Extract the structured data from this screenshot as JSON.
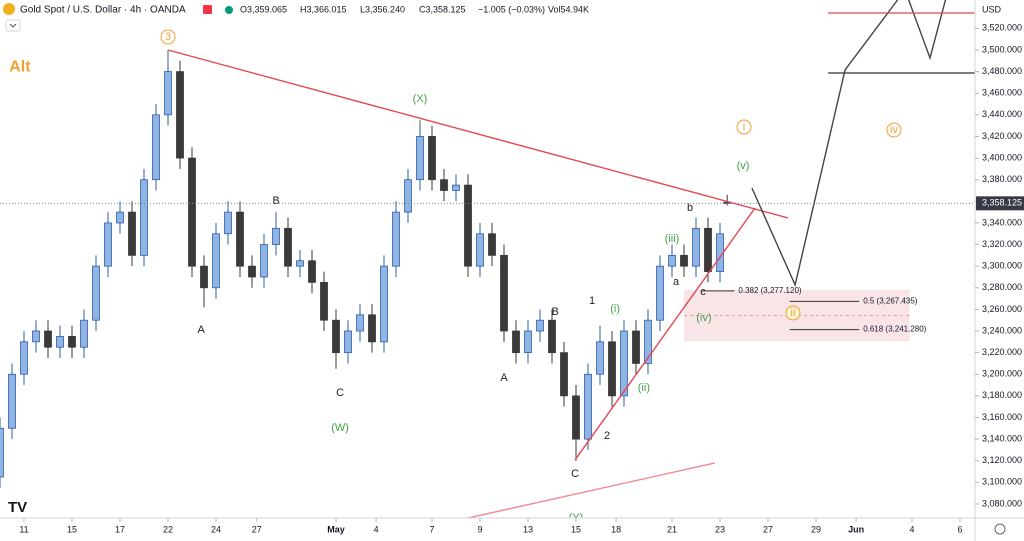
{
  "header": {
    "symbol": "Gold Spot / U.S. Dollar · 4h · OANDA",
    "open": "O3,359.065",
    "high": "H3,366.015",
    "low": "L3,356.240",
    "close": "C3,358.125",
    "change": "−1.005 (−0.03%)",
    "volume": "Vol54.94K"
  },
  "chart_data": {
    "type": "candlestick",
    "currency": "USD",
    "up_color": "#8fb3e3",
    "up_border": "#2f5ea8",
    "down_color": "#3a3a3a",
    "x": [
      -1,
      -0.5,
      0,
      0.5,
      1,
      1.5,
      2,
      2.5,
      3,
      3.5,
      4,
      4.5,
      5,
      5.5,
      6,
      6.5,
      7,
      7.5,
      8,
      8.5,
      9,
      9.5,
      10,
      10.5,
      11,
      11.5,
      12,
      12.5,
      13,
      13.5,
      14,
      14.5,
      15,
      15.5,
      16,
      16.5,
      17,
      17.5,
      18,
      18.5,
      19,
      19.5,
      20,
      20.5,
      21,
      21.5,
      22,
      22.5,
      23,
      23.5,
      24,
      24.5,
      25,
      25.5,
      26,
      26.5,
      27,
      27.5,
      28,
      28.5,
      29,
      29.3
    ],
    "open": [
      3105,
      3150,
      3200,
      3230,
      3240,
      3225,
      3235,
      3225,
      3250,
      3300,
      3340,
      3350,
      3310,
      3380,
      3440,
      3480,
      3400,
      3300,
      3280,
      3330,
      3350,
      3300,
      3290,
      3320,
      3335,
      3300,
      3305,
      3285,
      3250,
      3220,
      3240,
      3255,
      3230,
      3300,
      3350,
      3380,
      3420,
      3380,
      3370,
      3375,
      3300,
      3330,
      3310,
      3240,
      3220,
      3240,
      3250,
      3220,
      3180,
      3140,
      3200,
      3230,
      3180,
      3240,
      3210,
      3250,
      3300,
      3310,
      3300,
      3335,
      3295,
      3359.065
    ],
    "high": [
      3160,
      3210,
      3240,
      3250,
      3250,
      3245,
      3245,
      3260,
      3310,
      3350,
      3360,
      3360,
      3390,
      3450,
      3500,
      3490,
      3410,
      3310,
      3340,
      3360,
      3360,
      3310,
      3330,
      3350,
      3345,
      3315,
      3315,
      3295,
      3260,
      3250,
      3265,
      3265,
      3310,
      3360,
      3390,
      3435,
      3430,
      3390,
      3385,
      3385,
      3340,
      3340,
      3320,
      3250,
      3250,
      3260,
      3260,
      3230,
      3190,
      3210,
      3245,
      3240,
      3250,
      3250,
      3260,
      3310,
      3320,
      3320,
      3345,
      3345,
      3340,
      3366.015
    ],
    "low": [
      3095,
      3140,
      3190,
      3220,
      3215,
      3215,
      3215,
      3215,
      3240,
      3290,
      3330,
      3300,
      3300,
      3370,
      3430,
      3390,
      3290,
      3262,
      3270,
      3320,
      3290,
      3280,
      3280,
      3310,
      3290,
      3290,
      3275,
      3240,
      3205,
      3210,
      3230,
      3220,
      3220,
      3290,
      3340,
      3370,
      3370,
      3360,
      3360,
      3290,
      3290,
      3300,
      3230,
      3210,
      3210,
      3230,
      3210,
      3170,
      3120,
      3130,
      3190,
      3170,
      3170,
      3200,
      3200,
      3240,
      3290,
      3290,
      3290,
      3285,
      3285,
      3356.24
    ],
    "close": [
      3150,
      3200,
      3230,
      3240,
      3225,
      3235,
      3225,
      3250,
      3300,
      3340,
      3350,
      3310,
      3380,
      3440,
      3480,
      3400,
      3300,
      3280,
      3330,
      3350,
      3300,
      3290,
      3320,
      3335,
      3300,
      3305,
      3285,
      3250,
      3220,
      3240,
      3255,
      3230,
      3300,
      3350,
      3380,
      3420,
      3380,
      3370,
      3375,
      3300,
      3330,
      3310,
      3240,
      3220,
      3240,
      3250,
      3220,
      3180,
      3140,
      3200,
      3230,
      3180,
      3240,
      3210,
      3250,
      3300,
      3310,
      3300,
      3335,
      3295,
      3330,
      3358.125
    ],
    "xlim": [
      -1,
      39.625
    ],
    "ylim": [
      3067,
      3544.4
    ],
    "grid": false,
    "yticks": [
      {
        "value": 3080,
        "label": "3,080.000"
      },
      {
        "value": 3100,
        "label": "3,100.000"
      },
      {
        "value": 3120,
        "label": "3,120.000"
      },
      {
        "value": 3140,
        "label": "3,140.000"
      },
      {
        "value": 3160,
        "label": "3,160.000"
      },
      {
        "value": 3180,
        "label": "3,180.000"
      },
      {
        "value": 3200,
        "label": "3,200.000"
      },
      {
        "value": 3220,
        "label": "3,220.000"
      },
      {
        "value": 3240,
        "label": "3,240.000"
      },
      {
        "value": 3260,
        "label": "3,260.000"
      },
      {
        "value": 3280,
        "label": "3,280.000"
      },
      {
        "value": 3300,
        "label": "3,300.000"
      },
      {
        "value": 3320,
        "label": "3,320.000"
      },
      {
        "value": 3340,
        "label": "3,340.000"
      },
      {
        "value": 3360,
        "label": "3,360.000"
      },
      {
        "value": 3380,
        "label": "3,380.000"
      },
      {
        "value": 3400,
        "label": "3,400.000"
      },
      {
        "value": 3420,
        "label": "3,420.000"
      },
      {
        "value": 3440,
        "label": "3,440.000"
      },
      {
        "value": 3460,
        "label": "3,460.000"
      },
      {
        "value": 3480,
        "label": "3,480.000"
      },
      {
        "value": 3500,
        "label": "3,500.000"
      },
      {
        "value": 3520,
        "label": "3,520.000"
      }
    ],
    "xticks": [
      {
        "value": 0,
        "label": "11"
      },
      {
        "value": 2,
        "label": "15"
      },
      {
        "value": 4,
        "label": "17"
      },
      {
        "value": 6,
        "label": "22"
      },
      {
        "value": 8,
        "label": "24"
      },
      {
        "value": 9.7,
        "label": "27"
      },
      {
        "value": 13,
        "label": "May"
      },
      {
        "value": 14.67,
        "label": "4"
      },
      {
        "value": 17,
        "label": "7"
      },
      {
        "value": 19,
        "label": "9"
      },
      {
        "value": 21,
        "label": "13"
      },
      {
        "value": 23,
        "label": "15"
      },
      {
        "value": 24.67,
        "label": "18"
      },
      {
        "value": 27,
        "label": "21"
      },
      {
        "value": 29,
        "label": "23"
      },
      {
        "value": 31,
        "label": "27"
      },
      {
        "value": 33,
        "label": "29"
      },
      {
        "value": 34.67,
        "label": "Jun"
      },
      {
        "value": 37,
        "label": "4"
      },
      {
        "value": 39,
        "label": "6"
      }
    ],
    "last_price": {
      "value": 3358.125,
      "label": "3,358.125"
    },
    "fib_zone": {
      "color": "#f8dde2",
      "top": 3278,
      "bottom": 3230.8,
      "x": [
        27.5,
        36.9
      ]
    },
    "fib_levels": [
      {
        "value": 3277.12,
        "label": "0.382 (3,277.120)",
        "x": [
          28.2,
          29.6
        ]
      },
      {
        "value": 3267.435,
        "label": "0.5 (3,267.435)",
        "x": [
          31.9,
          34.8
        ]
      },
      {
        "value": 3241.28,
        "label": "0.618 (3,241.280)",
        "x": [
          31.9,
          34.8
        ]
      }
    ],
    "trendlines": [
      {
        "color": "#e5474f",
        "x": [
          6,
          31.83
        ],
        "y": [
          3500,
          3344.6
        ]
      },
      {
        "color": "#e5474f",
        "x": [
          22.96,
          30.46
        ],
        "y": [
          3120.7,
          3353.8
        ]
      },
      {
        "color": "#f08a90",
        "x": [
          17.96,
          28.79
        ],
        "y": [
          3064.3,
          3117.9
        ]
      },
      {
        "color": "#444444",
        "x": [
          30.33,
          32.13,
          34.21,
          36.71
        ],
        "y": [
          3372.3,
          3282.6,
          3481.5,
          3555.5
        ]
      },
      {
        "color": "#444444",
        "x": [
          36.71,
          37.75,
          38.5
        ],
        "y": [
          3555.5,
          3492.6,
          3555
        ]
      }
    ],
    "hlines": [
      {
        "color": "#e5474f",
        "value": 3534.2,
        "x": [
          33.5,
          39.625
        ]
      },
      {
        "color": "#333333",
        "value": 3478.7,
        "x": [
          33.5,
          39.625
        ]
      }
    ],
    "annotations": [
      {
        "text": "3",
        "x": 6,
        "y": 3512,
        "color": "#f0a030",
        "circle": true
      },
      {
        "text": "Alt",
        "x": -0.17,
        "y": 3484,
        "color": "#f0a030",
        "bold": true
      },
      {
        "text": "(X)",
        "x": 16.5,
        "y": 3454.7,
        "color": "#43a047"
      },
      {
        "text": "A",
        "x": 7.38,
        "y": 3241,
        "color": "#222222"
      },
      {
        "text": "B",
        "x": 10.5,
        "y": 3360.3,
        "color": "#222222"
      },
      {
        "text": "C",
        "x": 13.17,
        "y": 3182.7,
        "color": "#222222"
      },
      {
        "text": "(W)",
        "x": 13.17,
        "y": 3150.3,
        "color": "#43a047"
      },
      {
        "text": "A",
        "x": 20,
        "y": 3196.6,
        "color": "#222222"
      },
      {
        "text": "B",
        "x": 22.13,
        "y": 3257.6,
        "color": "#222222"
      },
      {
        "text": "C",
        "x": 22.96,
        "y": 3107.8,
        "color": "#222222"
      },
      {
        "text": "(Y)",
        "x": 23,
        "y": 3067,
        "color": "#43a047"
      },
      {
        "text": "1",
        "x": 23.67,
        "y": 3267.8,
        "color": "#222222"
      },
      {
        "text": "2",
        "x": 24.29,
        "y": 3143,
        "color": "#222222"
      },
      {
        "text": "(i)",
        "x": 24.63,
        "y": 3260.4,
        "color": "#43a047"
      },
      {
        "text": "(ii)",
        "x": 25.83,
        "y": 3187.3,
        "color": "#43a047"
      },
      {
        "text": "(iii)",
        "x": 27,
        "y": 3325.2,
        "color": "#43a047"
      },
      {
        "text": "(iv)",
        "x": 28.33,
        "y": 3252.1,
        "color": "#43a047"
      },
      {
        "text": "(v)",
        "x": 29.96,
        "y": 3392.7,
        "color": "#43a047"
      },
      {
        "text": "a",
        "x": 27.17,
        "y": 3285.4,
        "color": "#222222"
      },
      {
        "text": "b",
        "x": 27.75,
        "y": 3353.8,
        "color": "#222222"
      },
      {
        "text": "c",
        "x": 28.29,
        "y": 3276.1,
        "color": "#222222"
      },
      {
        "text": "i",
        "x": 30,
        "y": 3428.8,
        "color": "#f0a030",
        "circle": true
      },
      {
        "text": "ii",
        "x": 32.04,
        "y": 3256.7,
        "color": "#f0a030",
        "circle": true,
        "fill": "#fff4d6"
      },
      {
        "text": "iv",
        "x": 36.25,
        "y": 3426,
        "color": "#f0a030",
        "circle": true
      }
    ]
  }
}
